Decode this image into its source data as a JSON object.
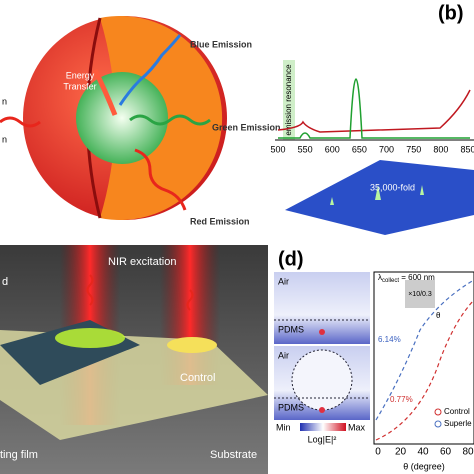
{
  "panel_a": {
    "left_top": "n",
    "left_bottom": "n",
    "energy": "Energy",
    "transfer": "Transfer",
    "blue": "Blue Emission",
    "green": "Green Emission",
    "red": "Red Emission"
  },
  "panel_b": {
    "label": "(b)",
    "resonance": "emission resonance",
    "xticks": [
      "500",
      "550",
      "600",
      "650",
      "700",
      "750",
      "800",
      "850"
    ],
    "enhancement": "35,000-fold"
  },
  "panel_c": {
    "excitation": "NIR excitation",
    "control": "Control",
    "substrate": "Substrate",
    "left_top": "d",
    "left_bottom": "ting film"
  },
  "panel_d": {
    "label": "(d)",
    "maps": [
      {
        "top": "Air",
        "bottom": "PDMS"
      },
      {
        "top": "Air",
        "bottom": "PDMS"
      }
    ],
    "colorbar": {
      "min": "Min",
      "max": "Max",
      "title": "Log|E|²"
    },
    "plot": {
      "lambda": "λ",
      "sub": "collect",
      "rest": " = 600 nm",
      "objective": "×10/0.3",
      "theta": "θ",
      "high": "6.14%",
      "low": "0.77%",
      "legend": [
        "Control",
        "Superle"
      ],
      "xticks": [
        "0",
        "20",
        "40",
        "60",
        "80"
      ],
      "xlabel": "θ (degree)"
    }
  }
}
